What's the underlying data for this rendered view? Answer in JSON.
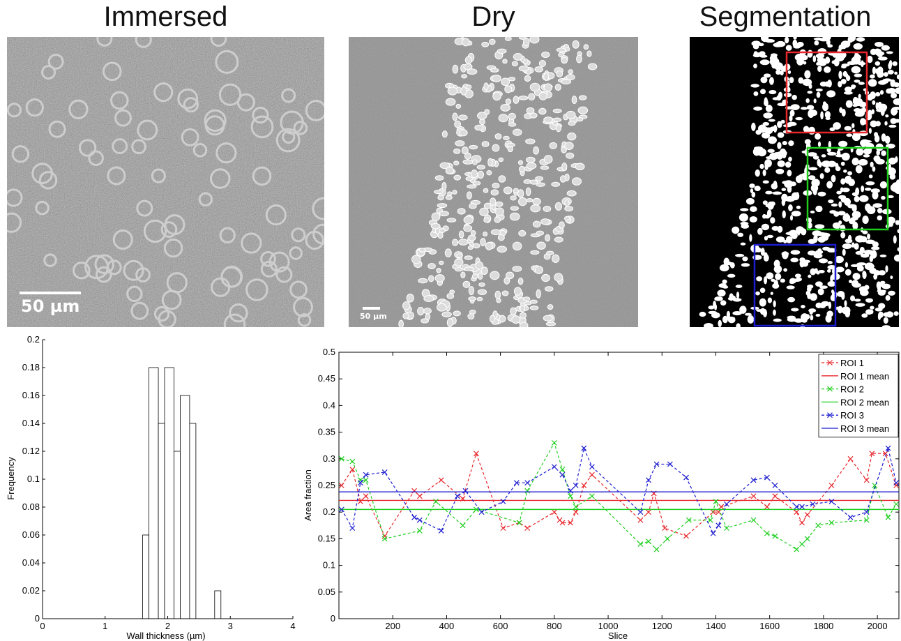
{
  "panels": {
    "immersed": {
      "title": "Immersed",
      "scalebar": "50 µm"
    },
    "dry": {
      "title": "Dry",
      "scalebar": "50 µm"
    },
    "segmentation": {
      "title": "Segmentation"
    }
  },
  "colors": {
    "roi1": "#e8262b",
    "roi2": "#1ecf1e",
    "roi3": "#1c1cd0"
  },
  "chart_data": [
    {
      "type": "bar",
      "xlabel": "Wall thickness (µm)",
      "ylabel": "Frequency",
      "xlim": [
        0,
        4
      ],
      "ylim": [
        0,
        0.2
      ],
      "xticks": [
        "0",
        "1",
        "2",
        "3",
        "4"
      ],
      "yticks": [
        "0",
        "0.02",
        "0.04",
        "0.06",
        "0.08",
        "0.1",
        "0.12",
        "0.14",
        "0.16",
        "0.18",
        "0.2"
      ],
      "bins": [
        {
          "start": 1.6,
          "end": 1.7,
          "value": 0.06
        },
        {
          "start": 1.7,
          "end": 1.85,
          "value": 0.18
        },
        {
          "start": 1.85,
          "end": 1.95,
          "value": 0.14
        },
        {
          "start": 1.95,
          "end": 2.1,
          "value": 0.18
        },
        {
          "start": 2.1,
          "end": 2.2,
          "value": 0.12
        },
        {
          "start": 2.2,
          "end": 2.35,
          "value": 0.16
        },
        {
          "start": 2.35,
          "end": 2.45,
          "value": 0.14
        },
        {
          "start": 2.75,
          "end": 2.85,
          "value": 0.02
        }
      ]
    },
    {
      "type": "line",
      "xlabel": "Slice",
      "ylabel": "Area fraction",
      "xlim": [
        0,
        2080
      ],
      "ylim": [
        0,
        0.5
      ],
      "xticks": [
        "200",
        "400",
        "600",
        "800",
        "1000",
        "1200",
        "1400",
        "1600",
        "1800",
        "2000"
      ],
      "yticks": [
        "0",
        "0.05",
        "0.1",
        "0.15",
        "0.2",
        "0.25",
        "0.3",
        "0.35",
        "0.4",
        "0.45",
        "0.5"
      ],
      "legend": [
        "ROI 1",
        "ROI 1 mean",
        "ROI 2",
        "ROI 2 mean",
        "ROI 3",
        "ROI 3 mean"
      ],
      "series": [
        {
          "name": "ROI 1",
          "points": [
            [
              10,
              0.25
            ],
            [
              50,
              0.28
            ],
            [
              80,
              0.22
            ],
            [
              100,
              0.23
            ],
            [
              170,
              0.155
            ],
            [
              280,
              0.24
            ],
            [
              300,
              0.23
            ],
            [
              380,
              0.26
            ],
            [
              460,
              0.225
            ],
            [
              510,
              0.31
            ],
            [
              610,
              0.17
            ],
            [
              670,
              0.18
            ],
            [
              700,
              0.17
            ],
            [
              800,
              0.2
            ],
            [
              820,
              0.185
            ],
            [
              830,
              0.18
            ],
            [
              860,
              0.18
            ],
            [
              880,
              0.2
            ],
            [
              910,
              0.25
            ],
            [
              940,
              0.27
            ],
            [
              1120,
              0.185
            ],
            [
              1150,
              0.2
            ],
            [
              1170,
              0.235
            ],
            [
              1210,
              0.17
            ],
            [
              1290,
              0.155
            ],
            [
              1390,
              0.2
            ],
            [
              1410,
              0.2
            ],
            [
              1420,
              0.21
            ],
            [
              1540,
              0.23
            ],
            [
              1590,
              0.21
            ],
            [
              1620,
              0.23
            ],
            [
              1700,
              0.2
            ],
            [
              1720,
              0.18
            ],
            [
              1740,
              0.195
            ],
            [
              1830,
              0.25
            ],
            [
              1900,
              0.3
            ],
            [
              1960,
              0.26
            ],
            [
              1980,
              0.31
            ],
            [
              2030,
              0.31
            ],
            [
              2070,
              0.25
            ]
          ]
        },
        {
          "name": "ROI 1 mean",
          "mean": 0.222
        },
        {
          "name": "ROI 2",
          "points": [
            [
              10,
              0.3
            ],
            [
              50,
              0.295
            ],
            [
              80,
              0.26
            ],
            [
              100,
              0.26
            ],
            [
              170,
              0.15
            ],
            [
              300,
              0.165
            ],
            [
              360,
              0.22
            ],
            [
              460,
              0.175
            ],
            [
              510,
              0.205
            ],
            [
              670,
              0.18
            ],
            [
              700,
              0.24
            ],
            [
              800,
              0.33
            ],
            [
              830,
              0.28
            ],
            [
              860,
              0.23
            ],
            [
              880,
              0.21
            ],
            [
              940,
              0.23
            ],
            [
              1120,
              0.14
            ],
            [
              1150,
              0.145
            ],
            [
              1180,
              0.13
            ],
            [
              1220,
              0.15
            ],
            [
              1300,
              0.185
            ],
            [
              1380,
              0.185
            ],
            [
              1400,
              0.22
            ],
            [
              1440,
              0.17
            ],
            [
              1540,
              0.185
            ],
            [
              1590,
              0.16
            ],
            [
              1620,
              0.155
            ],
            [
              1700,
              0.13
            ],
            [
              1720,
              0.14
            ],
            [
              1740,
              0.15
            ],
            [
              1780,
              0.175
            ],
            [
              1830,
              0.18
            ],
            [
              1960,
              0.185
            ],
            [
              1990,
              0.25
            ],
            [
              2040,
              0.19
            ],
            [
              2070,
              0.215
            ]
          ]
        },
        {
          "name": "ROI 2 mean",
          "mean": 0.205
        },
        {
          "name": "ROI 3",
          "points": [
            [
              10,
              0.205
            ],
            [
              50,
              0.17
            ],
            [
              80,
              0.255
            ],
            [
              100,
              0.27
            ],
            [
              170,
              0.275
            ],
            [
              280,
              0.19
            ],
            [
              300,
              0.185
            ],
            [
              380,
              0.165
            ],
            [
              440,
              0.23
            ],
            [
              470,
              0.24
            ],
            [
              530,
              0.2
            ],
            [
              610,
              0.22
            ],
            [
              660,
              0.255
            ],
            [
              700,
              0.255
            ],
            [
              800,
              0.285
            ],
            [
              830,
              0.27
            ],
            [
              860,
              0.24
            ],
            [
              880,
              0.25
            ],
            [
              910,
              0.32
            ],
            [
              940,
              0.285
            ],
            [
              1120,
              0.2
            ],
            [
              1150,
              0.26
            ],
            [
              1180,
              0.29
            ],
            [
              1230,
              0.29
            ],
            [
              1290,
              0.265
            ],
            [
              1390,
              0.16
            ],
            [
              1410,
              0.175
            ],
            [
              1440,
              0.215
            ],
            [
              1540,
              0.26
            ],
            [
              1590,
              0.265
            ],
            [
              1620,
              0.25
            ],
            [
              1700,
              0.21
            ],
            [
              1720,
              0.21
            ],
            [
              1760,
              0.215
            ],
            [
              1830,
              0.22
            ],
            [
              1900,
              0.19
            ],
            [
              1960,
              0.2
            ],
            [
              2040,
              0.32
            ],
            [
              2070,
              0.255
            ]
          ]
        },
        {
          "name": "ROI 3 mean",
          "mean": 0.238
        }
      ]
    }
  ]
}
